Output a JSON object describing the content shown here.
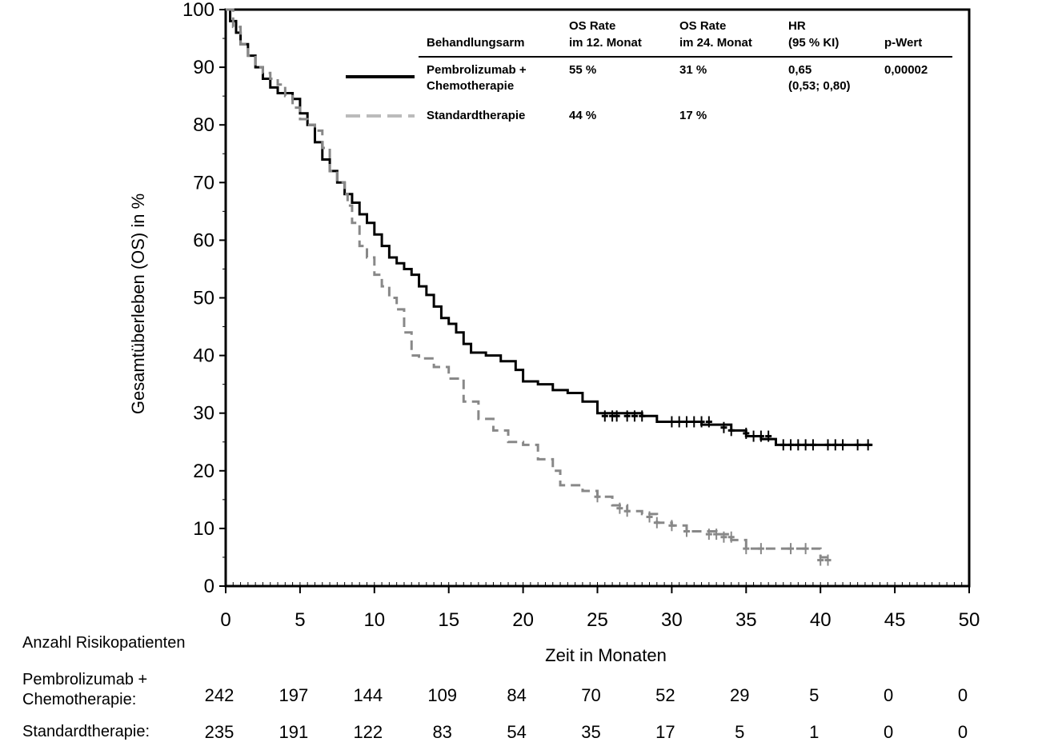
{
  "chart_data": {
    "type": "line",
    "subtype": "kaplan-meier",
    "ylabel": "Gesamtüberleben (OS) in %",
    "xlabel": "Zeit in Monaten",
    "xlim": [
      0,
      50
    ],
    "ylim": [
      0,
      100
    ],
    "x_ticks": [
      "0",
      "5",
      "10",
      "15",
      "20",
      "25",
      "30",
      "35",
      "40",
      "45",
      "50"
    ],
    "y_ticks": [
      "0",
      "10",
      "20",
      "30",
      "40",
      "50",
      "60",
      "70",
      "80",
      "90",
      "100"
    ],
    "legend": {
      "headers": {
        "arm": "Behandlungsarm",
        "os12_l1": "OS Rate",
        "os12_l2": "im 12. Monat",
        "os24_l1": "OS Rate",
        "os24_l2": "im 24. Monat",
        "hr_l1": "HR",
        "hr_l2": "(95 % KI)",
        "p": "p-Wert"
      },
      "rows": [
        {
          "arm_l1": "Pembrolizumab +",
          "arm_l2": "Chemotherapie",
          "os12": "55 %",
          "os24": "31 %",
          "hr_l1": "0,65",
          "hr_l2": "(0,53; 0,80)",
          "p": "0,00002"
        },
        {
          "arm_l1": "Standardtherapie",
          "arm_l2": "",
          "os12": "44 %",
          "os24": "17 %",
          "hr_l1": "",
          "hr_l2": "",
          "p": ""
        }
      ]
    },
    "series": [
      {
        "name": "Pembrolizumab + Chemotherapie",
        "color": "#000000",
        "dash": "",
        "points": [
          [
            0,
            100
          ],
          [
            0.3,
            98
          ],
          [
            0.7,
            96
          ],
          [
            1,
            94
          ],
          [
            1.5,
            92
          ],
          [
            2,
            90
          ],
          [
            2.5,
            88
          ],
          [
            3,
            86.5
          ],
          [
            3.5,
            85.5
          ],
          [
            4.5,
            84.5
          ],
          [
            5,
            82
          ],
          [
            5.5,
            80
          ],
          [
            6,
            77
          ],
          [
            6.5,
            74
          ],
          [
            7,
            72
          ],
          [
            7.5,
            70
          ],
          [
            8,
            68
          ],
          [
            8.5,
            66.5
          ],
          [
            9,
            64.5
          ],
          [
            9.5,
            63
          ],
          [
            10,
            61
          ],
          [
            10.5,
            59
          ],
          [
            11,
            57
          ],
          [
            11.5,
            56
          ],
          [
            12,
            55
          ],
          [
            12.5,
            54
          ],
          [
            13,
            52
          ],
          [
            13.5,
            50.5
          ],
          [
            14,
            48.5
          ],
          [
            14.5,
            46.5
          ],
          [
            15,
            45.5
          ],
          [
            15.5,
            44
          ],
          [
            16,
            42
          ],
          [
            16.5,
            40.5
          ],
          [
            17.5,
            40
          ],
          [
            18.5,
            39
          ],
          [
            19.5,
            37.5
          ],
          [
            20,
            35.5
          ],
          [
            21,
            35
          ],
          [
            22,
            34
          ],
          [
            23,
            33.5
          ],
          [
            24,
            32
          ],
          [
            25,
            30
          ],
          [
            26,
            30
          ],
          [
            28,
            29.5
          ],
          [
            29,
            28.5
          ],
          [
            32,
            28
          ],
          [
            34,
            27
          ],
          [
            35,
            26
          ],
          [
            36,
            25.5
          ],
          [
            37,
            24.5
          ],
          [
            43.5,
            24.5
          ]
        ],
        "censors": [
          [
            25.5,
            29.5
          ],
          [
            26,
            29.5
          ],
          [
            26.3,
            29.5
          ],
          [
            27,
            29.5
          ],
          [
            27.5,
            29.5
          ],
          [
            28,
            29.5
          ],
          [
            30,
            28.5
          ],
          [
            30.5,
            28.5
          ],
          [
            31,
            28.5
          ],
          [
            31.5,
            28.5
          ],
          [
            32,
            28.5
          ],
          [
            32.5,
            28.5
          ],
          [
            33.5,
            27.5
          ],
          [
            34,
            27
          ],
          [
            35,
            26.5
          ],
          [
            35.5,
            26
          ],
          [
            36,
            26
          ],
          [
            36.5,
            26
          ],
          [
            37.5,
            24.5
          ],
          [
            38,
            24.5
          ],
          [
            38.5,
            24.5
          ],
          [
            39,
            24.5
          ],
          [
            39.5,
            24.5
          ],
          [
            40.5,
            24.5
          ],
          [
            41,
            24.5
          ],
          [
            41.5,
            24.5
          ],
          [
            42.5,
            24.5
          ],
          [
            43.2,
            24.5
          ]
        ]
      },
      {
        "name": "Standardtherapie",
        "color": "#888888",
        "dash": "12,7",
        "points": [
          [
            0,
            100
          ],
          [
            0.5,
            97
          ],
          [
            1,
            94
          ],
          [
            1.5,
            92
          ],
          [
            2,
            90
          ],
          [
            2.5,
            89
          ],
          [
            3,
            88
          ],
          [
            3.5,
            87
          ],
          [
            4,
            85
          ],
          [
            4.5,
            83
          ],
          [
            5,
            81
          ],
          [
            5.5,
            80
          ],
          [
            6,
            79
          ],
          [
            6.5,
            76
          ],
          [
            7,
            72
          ],
          [
            7.5,
            70
          ],
          [
            8,
            68
          ],
          [
            8.2,
            66
          ],
          [
            8.5,
            63
          ],
          [
            9,
            59
          ],
          [
            9.5,
            57
          ],
          [
            10,
            54
          ],
          [
            10.5,
            52
          ],
          [
            11,
            50
          ],
          [
            11.5,
            48
          ],
          [
            12,
            44
          ],
          [
            12.5,
            40
          ],
          [
            13,
            39.5
          ],
          [
            14,
            38
          ],
          [
            15,
            36
          ],
          [
            16,
            32
          ],
          [
            17,
            29
          ],
          [
            18,
            27
          ],
          [
            19,
            25
          ],
          [
            20,
            24.5
          ],
          [
            21,
            22
          ],
          [
            22,
            20
          ],
          [
            22.5,
            17.5
          ],
          [
            24,
            16.5
          ],
          [
            25,
            15.5
          ],
          [
            26,
            14
          ],
          [
            27,
            13
          ],
          [
            28,
            12.5
          ],
          [
            29,
            11
          ],
          [
            30,
            10.5
          ],
          [
            31,
            9.5
          ],
          [
            33,
            9
          ],
          [
            34,
            8
          ],
          [
            35,
            6.5
          ],
          [
            37,
            6.5
          ],
          [
            40,
            5
          ],
          [
            40.5,
            4.5
          ]
        ],
        "censors": [
          [
            25,
            15.5
          ],
          [
            26.5,
            13.5
          ],
          [
            27,
            13
          ],
          [
            28.5,
            12
          ],
          [
            29,
            11
          ],
          [
            30,
            10.5
          ],
          [
            31,
            9.5
          ],
          [
            32.5,
            9
          ],
          [
            33,
            9
          ],
          [
            33.5,
            8.5
          ],
          [
            34,
            8.5
          ],
          [
            35,
            6.5
          ],
          [
            36,
            6.5
          ],
          [
            38,
            6.5
          ],
          [
            39,
            6.5
          ],
          [
            40,
            4.5
          ],
          [
            40.5,
            4.5
          ]
        ]
      }
    ],
    "risk_table": {
      "title": "Anzahl Risikopatienten",
      "rows": [
        {
          "label_l1": "Pembrolizumab +",
          "label_l2": "Chemotherapie:",
          "values": [
            "242",
            "197",
            "144",
            "109",
            "84",
            "70",
            "52",
            "29",
            "5",
            "0",
            "0"
          ]
        },
        {
          "label_l1": "Standardtherapie:",
          "label_l2": "",
          "values": [
            "235",
            "191",
            "122",
            "83",
            "54",
            "35",
            "17",
            "5",
            "1",
            "0",
            "0"
          ]
        }
      ]
    }
  }
}
